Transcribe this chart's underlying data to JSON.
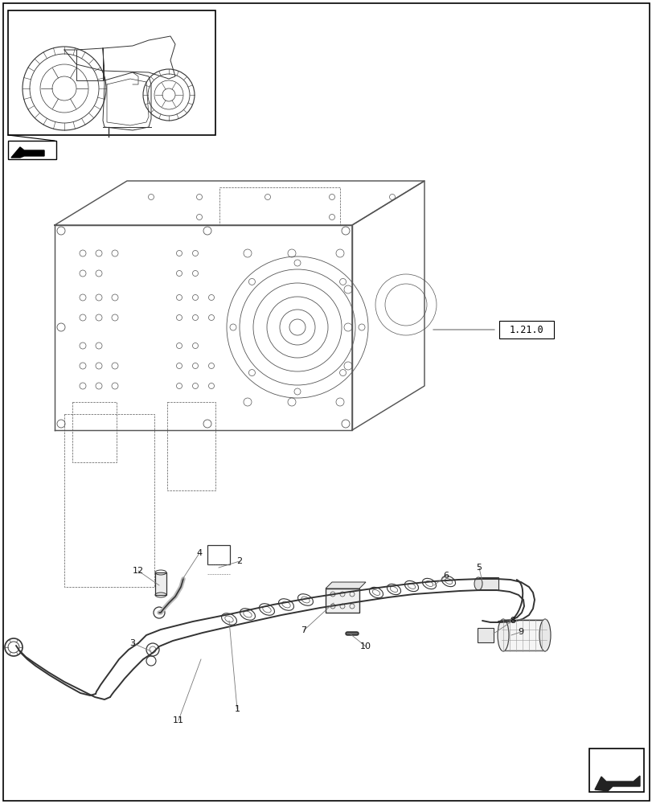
{
  "bg_color": "#ffffff",
  "line_color": "#444444",
  "dark_color": "#111111",
  "gray_color": "#888888",
  "fig_width": 8.12,
  "fig_height": 10.0,
  "label_121": "1.21.0"
}
